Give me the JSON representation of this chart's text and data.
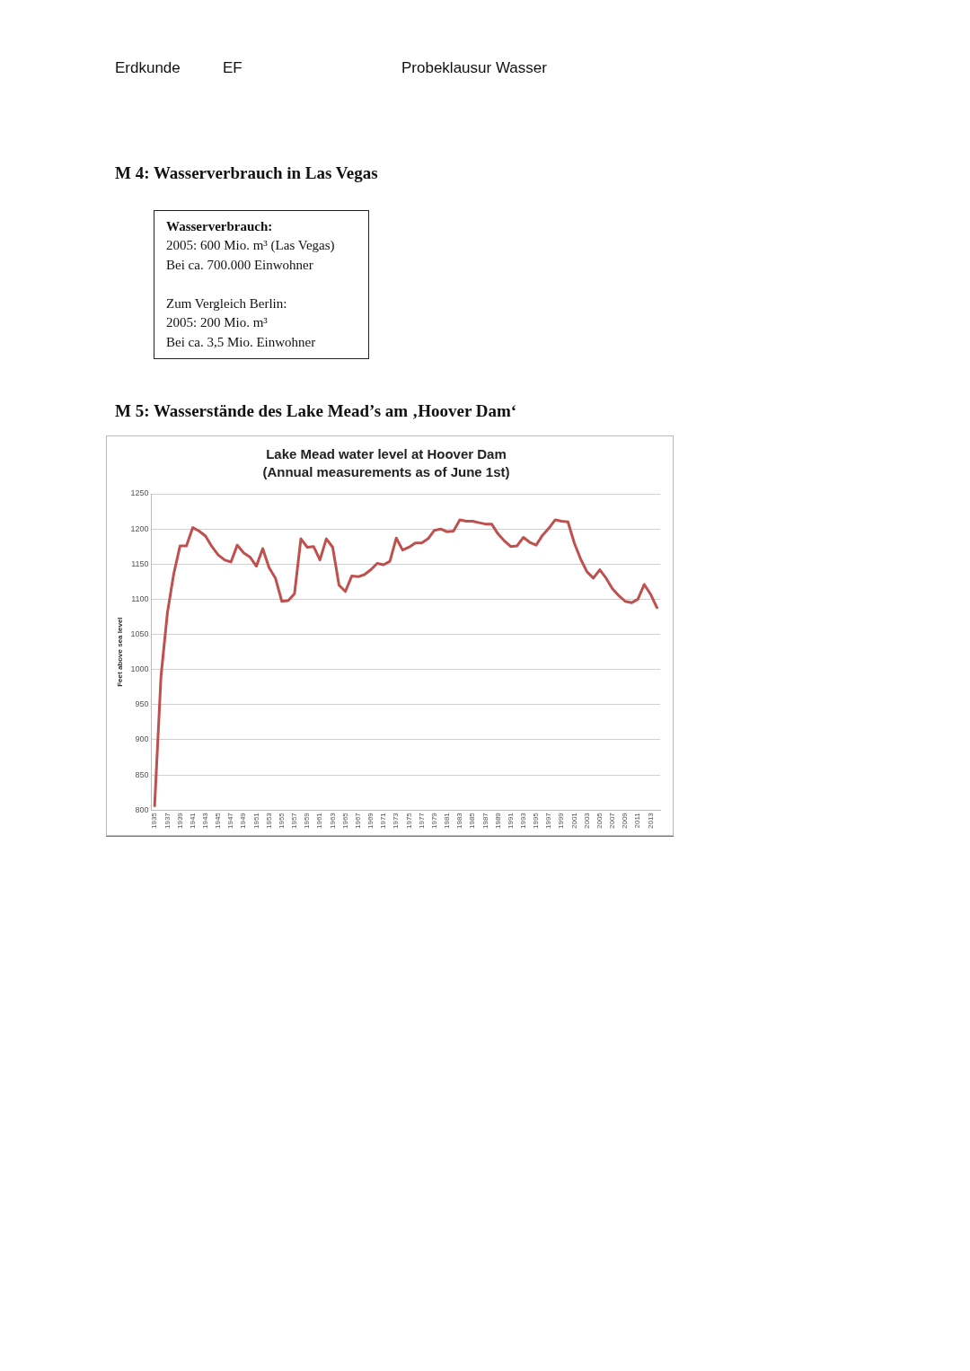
{
  "chart_data": {
    "type": "line",
    "title": "Lake Mead water level at Hoover Dam",
    "subtitle": "(Annual measurements as of June 1st)",
    "ylabel": "Feet above sea level",
    "x": [
      1935,
      1936,
      1937,
      1938,
      1939,
      1940,
      1941,
      1942,
      1943,
      1944,
      1945,
      1946,
      1947,
      1948,
      1949,
      1950,
      1951,
      1952,
      1953,
      1954,
      1955,
      1956,
      1957,
      1958,
      1959,
      1960,
      1961,
      1962,
      1963,
      1964,
      1965,
      1966,
      1967,
      1968,
      1969,
      1970,
      1971,
      1972,
      1973,
      1974,
      1975,
      1976,
      1977,
      1978,
      1979,
      1980,
      1981,
      1982,
      1983,
      1984,
      1985,
      1986,
      1987,
      1988,
      1989,
      1990,
      1991,
      1992,
      1993,
      1994,
      1995,
      1996,
      1997,
      1998,
      1999,
      2000,
      2001,
      2002,
      2003,
      2004,
      2005,
      2006,
      2007,
      2008,
      2009,
      2010,
      2011,
      2012,
      2013,
      2014
    ],
    "series": [
      {
        "color": "#c0504d",
        "values": [
          806,
          990,
          1080,
          1136,
          1176,
          1176,
          1202,
          1197,
          1190,
          1175,
          1163,
          1156,
          1153,
          1177,
          1166,
          1160,
          1147,
          1172,
          1145,
          1130,
          1097,
          1098,
          1108,
          1186,
          1174,
          1175,
          1156,
          1186,
          1174,
          1120,
          1111,
          1133,
          1132,
          1135,
          1142,
          1151,
          1149,
          1154,
          1187,
          1170,
          1174,
          1180,
          1180,
          1186,
          1198,
          1200,
          1196,
          1197,
          1213,
          1211,
          1211,
          1209,
          1207,
          1207,
          1193,
          1183,
          1175,
          1176,
          1188,
          1181,
          1177,
          1191,
          1201,
          1213,
          1211,
          1210,
          1180,
          1157,
          1139,
          1130,
          1142,
          1130,
          1115,
          1105,
          1097,
          1095,
          1100,
          1121,
          1107,
          1088
        ]
      }
    ],
    "xlim": [
      1934.5,
      2014.5
    ],
    "xticks": [
      1935,
      1937,
      1939,
      1941,
      1943,
      1945,
      1947,
      1949,
      1951,
      1953,
      1955,
      1957,
      1959,
      1961,
      1963,
      1965,
      1967,
      1969,
      1971,
      1973,
      1975,
      1977,
      1979,
      1981,
      1983,
      1985,
      1987,
      1989,
      1991,
      1993,
      1995,
      1997,
      1999,
      2001,
      2003,
      2005,
      2007,
      2009,
      2011,
      2013
    ],
    "ylim": [
      800,
      1250
    ],
    "yticks": [
      800,
      850,
      900,
      950,
      1000,
      1050,
      1100,
      1150,
      1200,
      1250
    ],
    "grid": "y",
    "legend": false,
    "marker": "none",
    "line_style": "solid",
    "annotations": [
      "Erdkunde",
      "EF",
      "Probeklausur Wasser",
      "M 4: Wasserverbrauch in Las Vegas",
      "Wasserverbrauch:",
      "2005: 600 Mio. m³ (Las Vegas)",
      "Bei ca. 700.000 Einwohner",
      "Zum Vergleich Berlin:",
      "2005: 200 Mio. m³",
      "Bei ca. 3,5 Mio. Einwohner",
      "M 5: Wasserstände des Lake Mead’s am ‚Hoover Dam‘"
    ]
  }
}
